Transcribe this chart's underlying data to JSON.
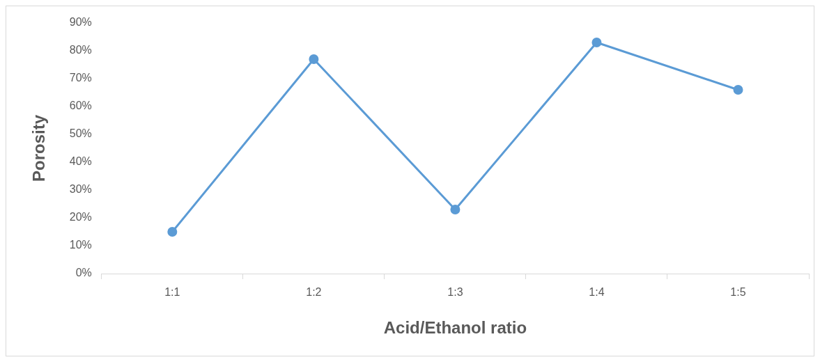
{
  "chart_data": {
    "type": "line",
    "xlabel": "Acid/Ethanol ratio",
    "ylabel": "Porosity",
    "categories": [
      "1:1",
      "1:2",
      "1:3",
      "1:4",
      "1:5"
    ],
    "series": [
      {
        "color": "#5b9bd5",
        "values": [
          15,
          77,
          23,
          83,
          66
        ]
      }
    ],
    "ylim": [
      0,
      90
    ],
    "yticks": [
      {
        "value": 0,
        "label": "0%"
      },
      {
        "value": 10,
        "label": "10%"
      },
      {
        "value": 20,
        "label": "20%"
      },
      {
        "value": 30,
        "label": "30%"
      },
      {
        "value": 40,
        "label": "40%"
      },
      {
        "value": 50,
        "label": "50%"
      },
      {
        "value": 60,
        "label": "60%"
      },
      {
        "value": 70,
        "label": "70%"
      },
      {
        "value": 80,
        "label": "80%"
      },
      {
        "value": 90,
        "label": "90%"
      }
    ],
    "marker": "circle",
    "line_style": "solid"
  }
}
